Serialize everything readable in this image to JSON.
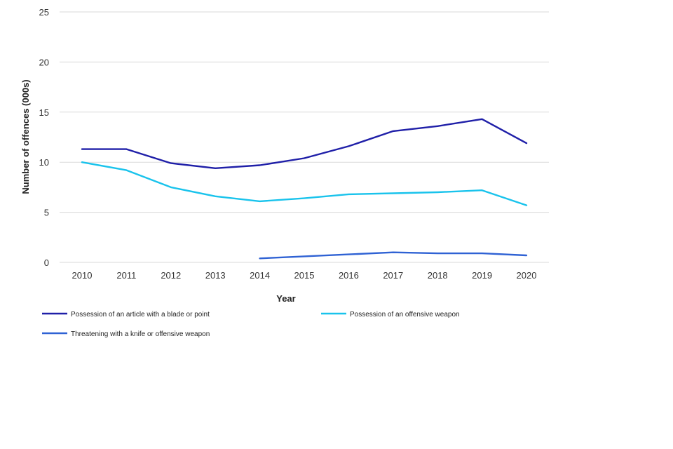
{
  "chart_data": {
    "type": "line",
    "title": "",
    "xlabel": "Year",
    "ylabel": "Number of offences (000s)",
    "ylim": [
      0,
      25
    ],
    "yticks": [
      0,
      5,
      10,
      15,
      20,
      25
    ],
    "grid": true,
    "legend_position": "bottom",
    "categories": [
      "2010",
      "2011",
      "2012",
      "2013",
      "2014",
      "2015",
      "2016",
      "2017",
      "2018",
      "2019",
      "2020"
    ],
    "series": [
      {
        "name": "Possession of an article with a blade or point",
        "color": "#1f1fa8",
        "values": [
          11.3,
          11.3,
          9.9,
          9.4,
          9.7,
          10.4,
          11.6,
          13.1,
          13.6,
          14.3,
          11.9
        ]
      },
      {
        "name": "Possession of an offensive weapon",
        "color": "#19c3ec",
        "values": [
          10.0,
          9.2,
          7.5,
          6.6,
          6.1,
          6.4,
          6.8,
          6.9,
          7.0,
          7.2,
          5.7
        ]
      },
      {
        "name": "Threatening with a knife or offensive weapon",
        "color": "#2f62d4",
        "values": [
          null,
          null,
          null,
          null,
          0.4,
          0.6,
          0.8,
          1.0,
          0.9,
          0.9,
          0.7
        ]
      }
    ]
  }
}
